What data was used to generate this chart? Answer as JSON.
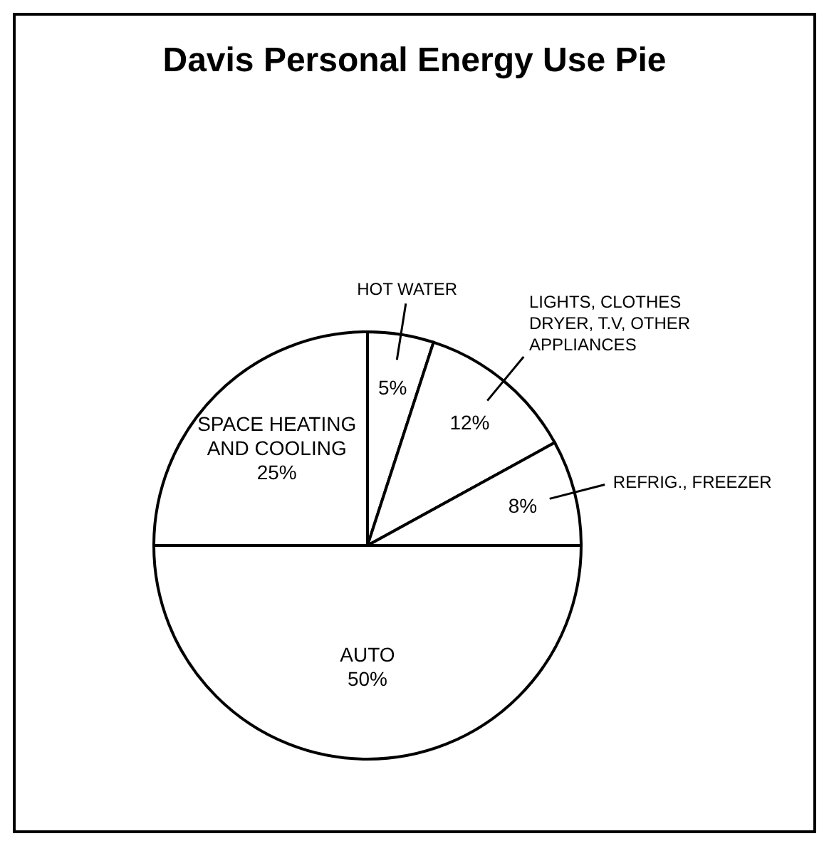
{
  "chart_data": {
    "type": "pie",
    "title": "Davis Personal Energy Use Pie",
    "categories": [
      "HOT WATER",
      "LIGHTS, CLOTHES DRYER, T.V, OTHER APPLIANCES",
      "REFRIG., FREEZER",
      "AUTO",
      "SPACE HEATING AND COOLING"
    ],
    "values": [
      5,
      12,
      8,
      50,
      25
    ],
    "value_labels": [
      "5%",
      "12%",
      "8%",
      "50%",
      "25%"
    ],
    "colors": [
      "#ffffff",
      "#ffffff",
      "#ffffff",
      "#ffffff",
      "#ffffff"
    ]
  }
}
